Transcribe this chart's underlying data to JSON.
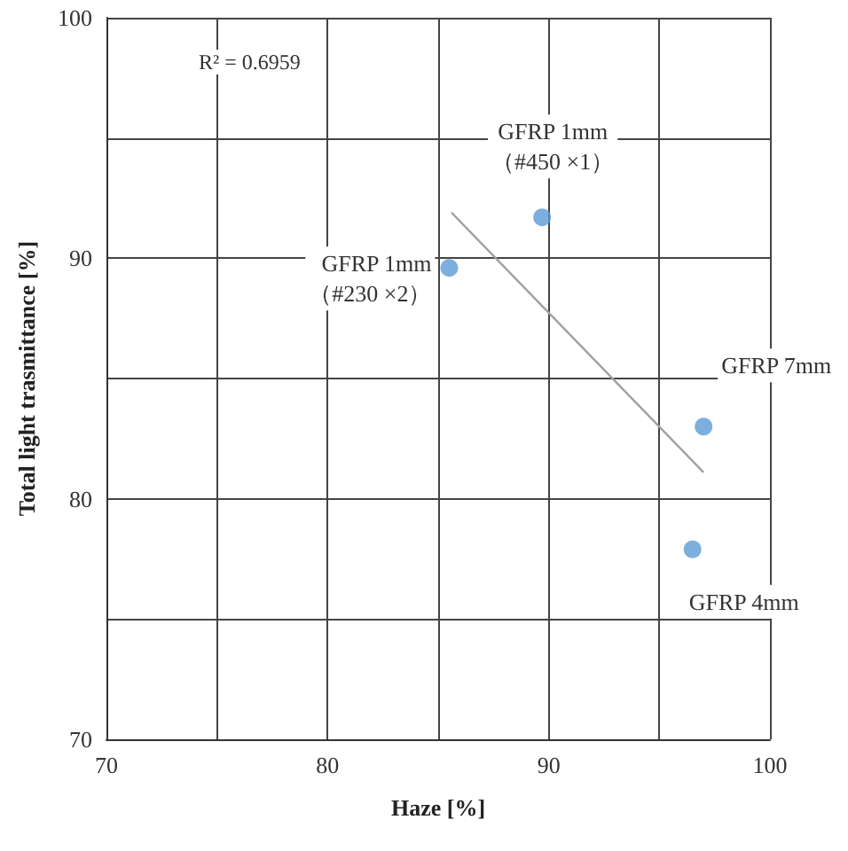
{
  "chart_data": {
    "type": "scatter",
    "xlabel": "Haze [%]",
    "ylabel": "Total light trasmittance [%]",
    "x": [
      85.5,
      89.7,
      97.0,
      96.5
    ],
    "series": [
      {
        "color": "#5b9bd5",
        "marker": "circle",
        "values": [
          89.6,
          91.7,
          83.0,
          77.9
        ]
      },
      {
        "type": "line",
        "marker": "none",
        "color": "#a0a0a0",
        "x": [
          85.6,
          97.0
        ],
        "values": [
          91.9,
          81.1
        ]
      }
    ],
    "xlim": [
      70,
      100
    ],
    "ylim": [
      70,
      100
    ],
    "xticks": [
      70,
      {
        "value": 75,
        "label": null
      },
      80,
      {
        "value": 85,
        "label": null
      },
      90,
      {
        "value": 95,
        "label": null
      },
      100
    ],
    "yticks": [
      70,
      {
        "value": 75,
        "label": null
      },
      80,
      {
        "value": 85,
        "label": null
      },
      90,
      {
        "value": 95,
        "label": null
      },
      100
    ],
    "grid": true,
    "annotations": [
      "R² = 0.6959",
      {
        "text": "GFRP 1mm\n（#230 ×2）",
        "x": 85.5,
        "y": 89.6
      },
      {
        "text": "GFRP 1mm\n（#450 ×1）",
        "x": 89.7,
        "y": 91.7
      },
      {
        "text": "GFRP 7mm",
        "x": 97.0,
        "y": 83.0
      },
      {
        "text": "GFRP 4mm",
        "x": 96.5,
        "y": 77.9
      }
    ]
  }
}
